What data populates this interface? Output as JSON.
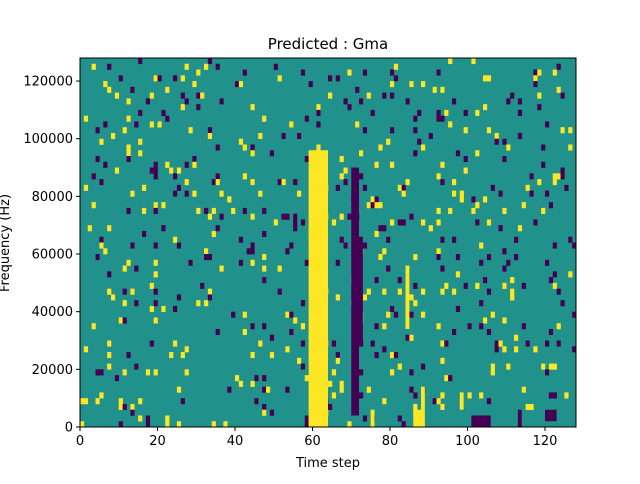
{
  "chart_data": {
    "type": "heatmap",
    "title": "Predicted : Gma",
    "xlabel": "Time step",
    "ylabel": "Frequency (Hz)",
    "xlim": [
      0,
      128
    ],
    "ylim": [
      0,
      128000
    ],
    "grid": false,
    "xticks": [
      0,
      20,
      40,
      60,
      80,
      100,
      120
    ],
    "yticks": [
      0,
      20000,
      40000,
      60000,
      80000,
      100000,
      120000
    ],
    "xtick_labels": [
      "0",
      "20",
      "40",
      "60",
      "80",
      "100",
      "120"
    ],
    "ytick_labels": [
      "0",
      "20000",
      "40000",
      "60000",
      "80000",
      "100000",
      "120000"
    ],
    "colors": {
      "background": "#21918c",
      "high": "#fde725",
      "low": "#440154"
    },
    "vertical_bands": [
      {
        "x": [
          58,
          59
        ],
        "y": [
          0,
          4000
        ],
        "value": "low"
      },
      {
        "x": [
          59,
          64
        ],
        "y": [
          0,
          96000
        ],
        "value": "high"
      },
      {
        "x": [
          60,
          64
        ],
        "y": [
          18000,
          74000
        ],
        "value": "high"
      },
      {
        "x": [
          70,
          72
        ],
        "y": [
          4000,
          90000
        ],
        "value": "low"
      },
      {
        "x": [
          72,
          73
        ],
        "y": [
          30000,
          66000
        ],
        "value": "low"
      },
      {
        "x": [
          75,
          76
        ],
        "y": [
          0,
          6000
        ],
        "value": "high"
      },
      {
        "x": [
          84,
          85
        ],
        "y": [
          34000,
          56000
        ],
        "value": "high"
      },
      {
        "x": [
          86,
          89
        ],
        "y": [
          0,
          6000
        ],
        "value": "high"
      },
      {
        "x": [
          88,
          89
        ],
        "y": [
          6000,
          14000
        ],
        "value": "high"
      },
      {
        "x": [
          98,
          99
        ],
        "y": [
          6000,
          12000
        ],
        "value": "high"
      },
      {
        "x": [
          101,
          104
        ],
        "y": [
          0,
          4000
        ],
        "value": "low"
      },
      {
        "x": [
          103,
          106
        ],
        "y": [
          0,
          4000
        ],
        "value": "low"
      },
      {
        "x": [
          113,
          114
        ],
        "y": [
          0,
          6000
        ],
        "value": "low"
      },
      {
        "x": [
          120,
          123
        ],
        "y": [
          2000,
          6000
        ],
        "value": "low"
      }
    ]
  }
}
